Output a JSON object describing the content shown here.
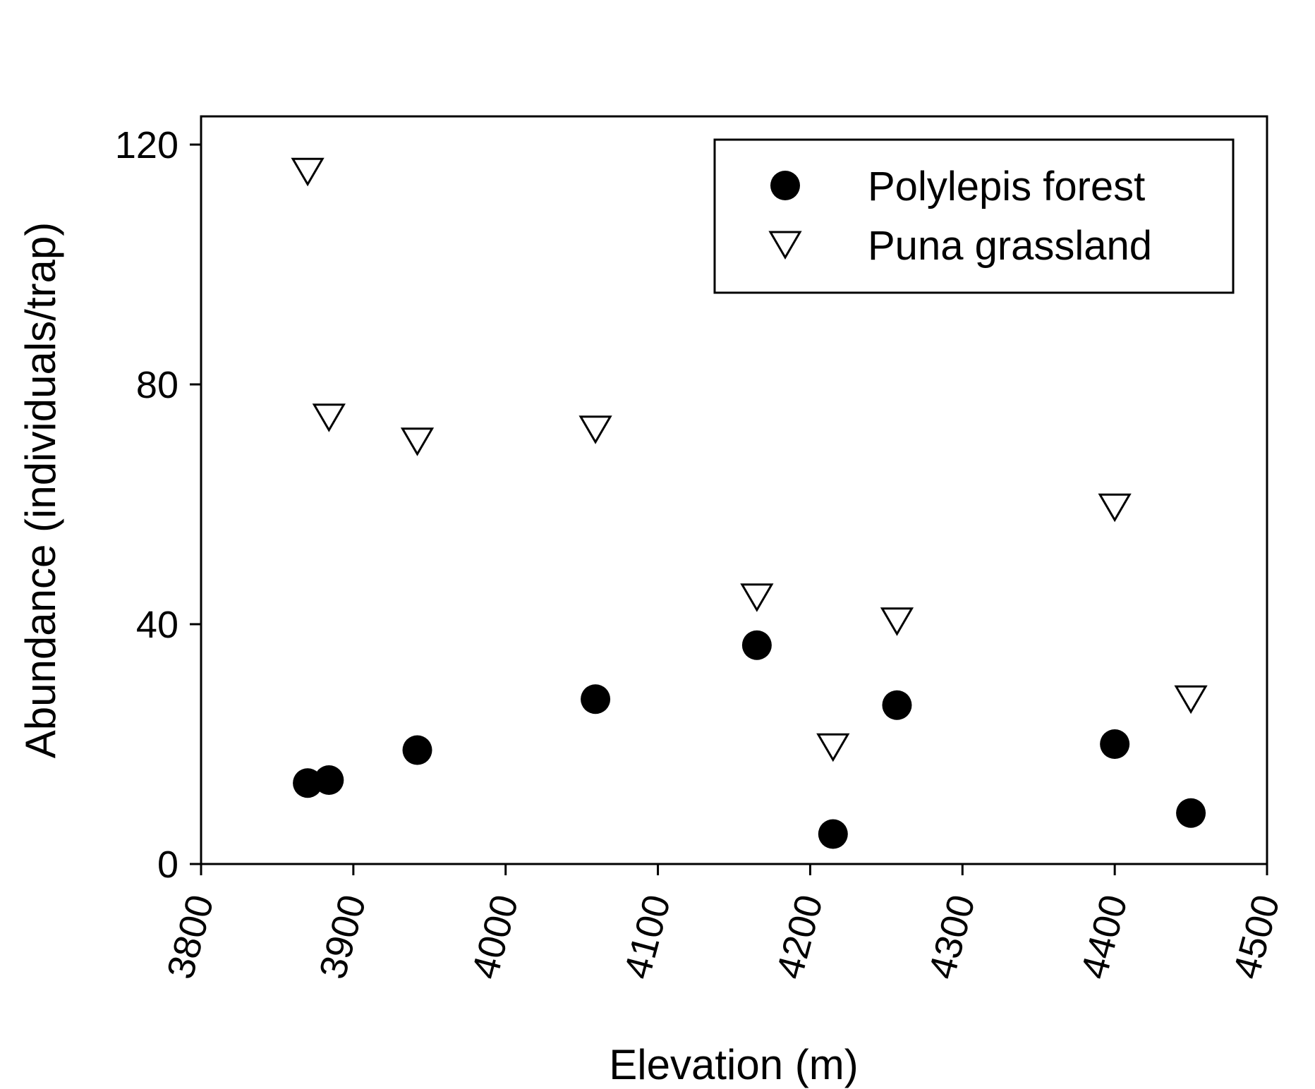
{
  "chart_data": {
    "type": "scatter",
    "title": "",
    "xlabel": "Elevation (m)",
    "ylabel": "Abundance (individuals/trap)",
    "xlim": [
      3800,
      4500
    ],
    "ylim": [
      0,
      125
    ],
    "xticks": [
      "3800",
      "3900",
      "4000",
      "4100",
      "4200",
      "4300",
      "4400",
      "4500"
    ],
    "yticks": [
      "0",
      "40",
      "80",
      "120"
    ],
    "grid": false,
    "legend_position": "top-right",
    "series": [
      {
        "name": "Polylepis forest",
        "marker": "filled-circle",
        "color": "#000000",
        "points": [
          {
            "x": 3870,
            "y": 13.5
          },
          {
            "x": 3884,
            "y": 14
          },
          {
            "x": 3942,
            "y": 19
          },
          {
            "x": 4059,
            "y": 27.5
          },
          {
            "x": 4165,
            "y": 36.5
          },
          {
            "x": 4215,
            "y": 5
          },
          {
            "x": 4257,
            "y": 26.5
          },
          {
            "x": 4400,
            "y": 20
          },
          {
            "x": 4450,
            "y": 8.5
          }
        ]
      },
      {
        "name": "Puna grassland",
        "marker": "open-triangle-down",
        "color": "#000000",
        "points": [
          {
            "x": 3870,
            "y": 115.5
          },
          {
            "x": 3884,
            "y": 74.5
          },
          {
            "x": 3942,
            "y": 70.5
          },
          {
            "x": 4059,
            "y": 72.5
          },
          {
            "x": 4165,
            "y": 44.5
          },
          {
            "x": 4215,
            "y": 19.5
          },
          {
            "x": 4257,
            "y": 40.5
          },
          {
            "x": 4400,
            "y": 59.5
          },
          {
            "x": 4450,
            "y": 27.5
          }
        ]
      }
    ]
  }
}
